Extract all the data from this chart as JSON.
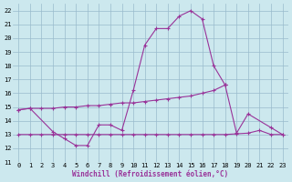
{
  "xlabel": "Windchill (Refroidissement éolien,°C)",
  "bg_color": "#cce8ee",
  "grid_color": "#99bbcc",
  "line_color": "#993399",
  "ylim": [
    11,
    22.5
  ],
  "xlim": [
    -0.5,
    23.5
  ],
  "yticks": [
    11,
    12,
    13,
    14,
    15,
    16,
    17,
    18,
    19,
    20,
    21,
    22
  ],
  "xticks": [
    0,
    1,
    2,
    3,
    4,
    5,
    6,
    7,
    8,
    9,
    10,
    11,
    12,
    13,
    14,
    15,
    16,
    17,
    18,
    19,
    20,
    21,
    22,
    23
  ],
  "tick_fontsize": 5.0,
  "curve_x": [
    0,
    1,
    3,
    4,
    5,
    6,
    7,
    8,
    9,
    10,
    11,
    12,
    13,
    14,
    15,
    16,
    17,
    18
  ],
  "curve_y": [
    14.8,
    14.9,
    13.2,
    12.7,
    12.2,
    12.2,
    13.7,
    13.7,
    13.3,
    16.2,
    19.5,
    20.7,
    20.7,
    21.6,
    22.0,
    21.4,
    18.0,
    16.6
  ],
  "diag_x": [
    0,
    1,
    2,
    3,
    4,
    5,
    6,
    7,
    8,
    9,
    10,
    11,
    12,
    13,
    14,
    15,
    16,
    17,
    18
  ],
  "diag_y": [
    14.8,
    14.9,
    14.9,
    14.9,
    15.0,
    15.0,
    15.1,
    15.1,
    15.2,
    15.3,
    15.3,
    15.4,
    15.5,
    15.6,
    15.7,
    15.8,
    16.0,
    16.2,
    16.6
  ],
  "flat_x": [
    0,
    1,
    2,
    3,
    4,
    5,
    6,
    7,
    8,
    9,
    10,
    11,
    12,
    13,
    14,
    15,
    16,
    17,
    18,
    19,
    20,
    21,
    22,
    23
  ],
  "flat_y": [
    13.0,
    13.0,
    13.0,
    13.0,
    13.0,
    13.0,
    13.0,
    13.0,
    13.0,
    13.0,
    13.0,
    13.0,
    13.0,
    13.0,
    13.0,
    13.0,
    13.0,
    13.0,
    13.0,
    13.05,
    13.1,
    13.3,
    13.0,
    13.0
  ],
  "tail_x": [
    18,
    19,
    20,
    22,
    23
  ],
  "tail_y": [
    16.6,
    13.1,
    14.5,
    13.5,
    13.0
  ]
}
